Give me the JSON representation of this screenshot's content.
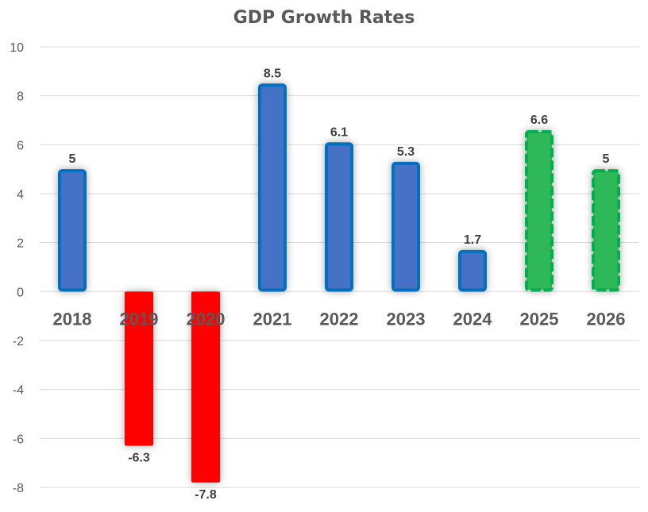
{
  "chart_data": {
    "type": "bar",
    "title": "GDP Growth Rates",
    "xlabel": "",
    "ylabel": "",
    "categories": [
      "2018",
      "2019",
      "2020",
      "2021",
      "2022",
      "2023",
      "2024",
      "2025",
      "2026"
    ],
    "values": [
      5,
      -6.3,
      -7.8,
      8.5,
      6.1,
      5.3,
      1.7,
      6.6,
      5
    ],
    "data_labels": [
      "5",
      "-6.3",
      "-7.8",
      "8.5",
      "6.1",
      "5.3",
      "1.7",
      "6.6",
      "5"
    ],
    "bar_styles": [
      "actual",
      "negative",
      "negative",
      "actual",
      "actual",
      "actual",
      "actual",
      "forecast",
      "forecast"
    ],
    "ylim": [
      -8,
      10
    ],
    "yticks": [
      10,
      8,
      6,
      4,
      2,
      0,
      -2,
      -4,
      -6,
      -8
    ],
    "grid": true,
    "legend": "none",
    "colors": {
      "actual_fill": "#4472C4",
      "actual_border": "#0070C0",
      "negative_fill": "#FF0000",
      "forecast_fill": "#2DB85A",
      "forecast_border": "#00B050"
    }
  }
}
